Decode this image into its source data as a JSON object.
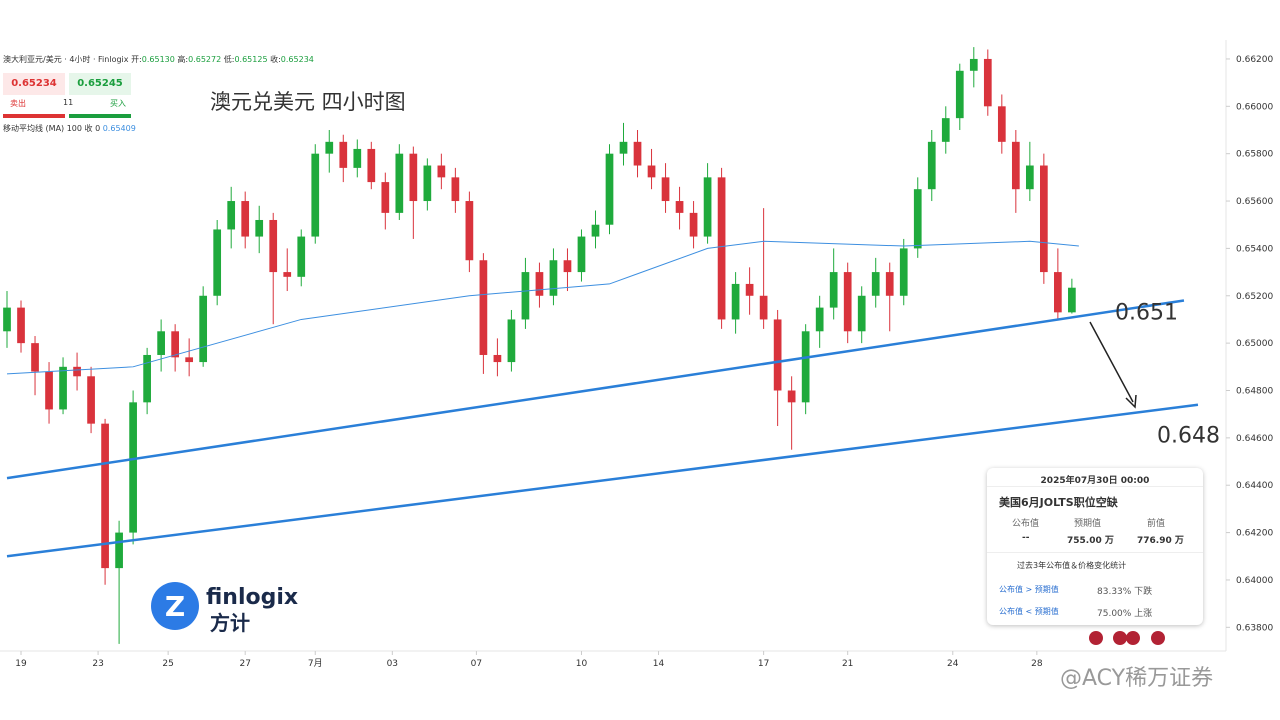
{
  "header": {
    "symbol": "澳大利亚元/美元 · 4小时 · Finlogix",
    "open_label": "开:",
    "open": "0.65130",
    "high_label": "高:",
    "high": "0.65272",
    "low_label": "低:",
    "low": "0.65125",
    "close_label": "收:",
    "close": "0.65234",
    "sell_price": "0.65234",
    "buy_price": "0.65245",
    "sell": "卖出",
    "spread": "11",
    "buy": "买入",
    "ma_label": "移动平均线 (MA)",
    "ma_params": "100 收 0",
    "ma_value": "0.65409"
  },
  "event": {
    "date": "2025年07月30日 00:00",
    "title": "美国6月JOLTS职位空缺",
    "col1": "公布值",
    "col2": "预期值",
    "col3": "前值",
    "actual": "--",
    "forecast": "755.00 万",
    "previous": "776.90 万",
    "stats": "过去3年公布值＆价格变化统计",
    "cond1": "公布值 > 预期值",
    "res1": "83.33% 下跌",
    "cond2": "公布值 < 预期值",
    "res2": "75.00% 上涨"
  },
  "logo": {
    "name": "finlogix",
    "cn": "方计"
  },
  "watermark": "@ACY稀万证券",
  "chart_data": {
    "type": "candlestick",
    "title": "澳元兑美元 四小时图",
    "up_color": "#1faa3c",
    "down_color": "#d9333c",
    "open": [
      0.6505,
      0.6515,
      0.65,
      0.6488,
      0.6472,
      0.649,
      0.6486,
      0.6466,
      0.6405,
      0.642,
      0.6475,
      0.6495,
      0.6505,
      0.6494,
      0.6492,
      0.652,
      0.6548,
      0.656,
      0.6545,
      0.6552,
      0.653,
      0.6528,
      0.6545,
      0.658,
      0.6585,
      0.6574,
      0.6582,
      0.6568,
      0.6555,
      0.658,
      0.656,
      0.6575,
      0.657,
      0.656,
      0.6535,
      0.6495,
      0.6492,
      0.651,
      0.653,
      0.652,
      0.6535,
      0.653,
      0.6545,
      0.655,
      0.658,
      0.6585,
      0.6575,
      0.657,
      0.656,
      0.6555,
      0.6545,
      0.657,
      0.651,
      0.6525,
      0.652,
      0.651,
      0.648,
      0.6475,
      0.6505,
      0.6515,
      0.653,
      0.6505,
      0.652,
      0.653,
      0.652,
      0.654,
      0.6565,
      0.6585,
      0.6595,
      0.6615,
      0.662,
      0.66,
      0.6585,
      0.6565,
      0.6575,
      0.653,
      0.6513
    ],
    "high": [
      0.6522,
      0.6518,
      0.6503,
      0.6492,
      0.6494,
      0.6496,
      0.649,
      0.6468,
      0.6425,
      0.648,
      0.6498,
      0.651,
      0.6508,
      0.6502,
      0.6524,
      0.6552,
      0.6566,
      0.6564,
      0.6558,
      0.6555,
      0.654,
      0.6548,
      0.6584,
      0.659,
      0.6588,
      0.6586,
      0.6585,
      0.6572,
      0.6584,
      0.6583,
      0.6578,
      0.658,
      0.6574,
      0.6564,
      0.6538,
      0.6502,
      0.6514,
      0.6536,
      0.6534,
      0.654,
      0.654,
      0.6548,
      0.6556,
      0.6584,
      0.6593,
      0.659,
      0.6582,
      0.6576,
      0.6566,
      0.656,
      0.6576,
      0.6574,
      0.653,
      0.6532,
      0.6557,
      0.6514,
      0.6486,
      0.6508,
      0.652,
      0.654,
      0.6534,
      0.6524,
      0.6536,
      0.6534,
      0.6544,
      0.657,
      0.659,
      0.66,
      0.6618,
      0.6625,
      0.6624,
      0.6605,
      0.659,
      0.6585,
      0.658,
      0.654,
      0.65272
    ],
    "low": [
      0.6498,
      0.6496,
      0.6478,
      0.6466,
      0.647,
      0.648,
      0.6462,
      0.6398,
      0.6373,
      0.6415,
      0.647,
      0.6488,
      0.6488,
      0.6486,
      0.649,
      0.6516,
      0.654,
      0.654,
      0.6538,
      0.6508,
      0.6522,
      0.6524,
      0.6542,
      0.6572,
      0.6568,
      0.657,
      0.6565,
      0.6548,
      0.6552,
      0.6544,
      0.6556,
      0.6565,
      0.6555,
      0.653,
      0.6487,
      0.6486,
      0.6488,
      0.6506,
      0.6515,
      0.6516,
      0.6522,
      0.6526,
      0.654,
      0.6546,
      0.6575,
      0.657,
      0.6565,
      0.6555,
      0.6548,
      0.654,
      0.6542,
      0.6506,
      0.6504,
      0.6512,
      0.6506,
      0.6465,
      0.6455,
      0.647,
      0.6498,
      0.651,
      0.65,
      0.65,
      0.6515,
      0.6505,
      0.6516,
      0.6536,
      0.656,
      0.658,
      0.659,
      0.6608,
      0.6596,
      0.658,
      0.6555,
      0.656,
      0.6525,
      0.651,
      0.65125
    ],
    "close": [
      0.6515,
      0.65,
      0.6488,
      0.6472,
      0.649,
      0.6486,
      0.6466,
      0.6405,
      0.642,
      0.6475,
      0.6495,
      0.6505,
      0.6494,
      0.6492,
      0.652,
      0.6548,
      0.656,
      0.6545,
      0.6552,
      0.653,
      0.6528,
      0.6545,
      0.658,
      0.6585,
      0.6574,
      0.6582,
      0.6568,
      0.6555,
      0.658,
      0.656,
      0.6575,
      0.657,
      0.656,
      0.6535,
      0.6495,
      0.6492,
      0.651,
      0.653,
      0.652,
      0.6535,
      0.653,
      0.6545,
      0.655,
      0.658,
      0.6585,
      0.6575,
      0.657,
      0.656,
      0.6555,
      0.6545,
      0.657,
      0.651,
      0.6525,
      0.652,
      0.651,
      0.648,
      0.6475,
      0.6505,
      0.6515,
      0.653,
      0.6505,
      0.652,
      0.653,
      0.652,
      0.654,
      0.6565,
      0.6585,
      0.6595,
      0.6615,
      0.662,
      0.66,
      0.6585,
      0.6565,
      0.6575,
      0.653,
      0.6513,
      0.65234
    ],
    "ma": {
      "color": "#3d8fe0",
      "x": [
        0,
        9,
        21,
        33,
        43,
        50,
        54,
        64,
        73,
        76.5
      ],
      "values": [
        0.6487,
        0.649,
        0.651,
        0.652,
        0.6525,
        0.654,
        0.6543,
        0.6541,
        0.6543,
        0.6541
      ]
    },
    "trendlines": [
      {
        "color": "#2a7fd8",
        "x": [
          0,
          84
        ],
        "values": [
          0.6443,
          0.6518
        ],
        "label": "0.651"
      },
      {
        "color": "#2a7fd8",
        "x": [
          0,
          85
        ],
        "values": [
          0.641,
          0.6474
        ],
        "label": "0.648"
      }
    ],
    "xlim": [
      -0.5,
      87
    ],
    "xticks": [
      {
        "value": 1,
        "label": "19"
      },
      {
        "value": 6.5,
        "label": "23"
      },
      {
        "value": 11.5,
        "label": "25"
      },
      {
        "value": 17,
        "label": "27"
      },
      {
        "value": 22,
        "label": "7月"
      },
      {
        "value": 27.5,
        "label": "03"
      },
      {
        "value": 33.5,
        "label": "07"
      },
      {
        "value": 41,
        "label": "10"
      },
      {
        "value": 46.5,
        "label": "14"
      },
      {
        "value": 54,
        "label": "17"
      },
      {
        "value": 60,
        "label": "21"
      },
      {
        "value": 67.5,
        "label": "24"
      },
      {
        "value": 73.5,
        "label": "28"
      }
    ],
    "ylim": [
      0.637,
      0.6628
    ],
    "yticks": [
      {
        "value": 0.662,
        "label": "0.66200"
      },
      {
        "value": 0.66,
        "label": "0.66000"
      },
      {
        "value": 0.658,
        "label": "0.65800"
      },
      {
        "value": 0.656,
        "label": "0.65600"
      },
      {
        "value": 0.654,
        "label": "0.65400"
      },
      {
        "value": 0.652,
        "label": "0.65200"
      },
      {
        "value": 0.65,
        "label": "0.65000"
      },
      {
        "value": 0.648,
        "label": "0.64800"
      },
      {
        "value": 0.646,
        "label": "0.64600"
      },
      {
        "value": 0.644,
        "label": "0.64400"
      },
      {
        "value": 0.642,
        "label": "0.64200"
      },
      {
        "value": 0.64,
        "label": "0.64000"
      },
      {
        "value": 0.638,
        "label": "0.63800"
      }
    ]
  }
}
